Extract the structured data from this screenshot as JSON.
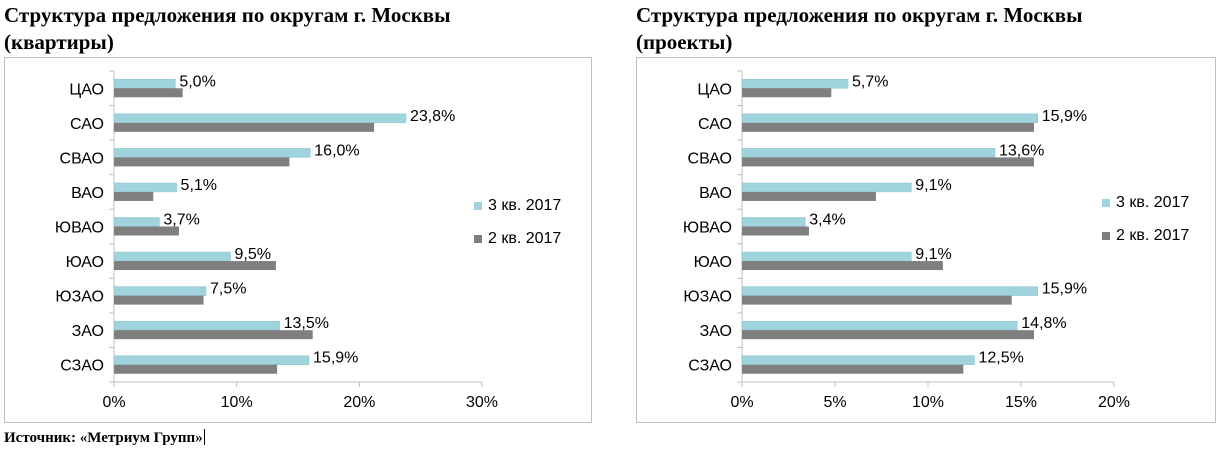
{
  "colors": {
    "q3": "#9fd4dc",
    "q2": "#7f7f7f",
    "axis": "#bfbfbf",
    "text": "#000000"
  },
  "source": "Источник: «Метриум Групп»",
  "chart_data": [
    {
      "type": "bar",
      "orientation": "horizontal",
      "title": "Структура предложения по округам г. Москвы (квартиры)",
      "title_lines": [
        "Структура предложения по округам г. Москвы",
        "(квартиры)"
      ],
      "categories": [
        "ЦАО",
        "САО",
        "СВАО",
        "ВАО",
        "ЮВАО",
        "ЮАО",
        "ЮЗАО",
        "ЗАО",
        "СЗАО"
      ],
      "series": [
        {
          "name": "3 кв. 2017",
          "values": [
            5.0,
            23.8,
            16.0,
            5.1,
            3.7,
            9.5,
            7.5,
            13.5,
            15.9
          ],
          "labels": [
            "5,0%",
            "23,8%",
            "16,0%",
            "5,1%",
            "3,7%",
            "9,5%",
            "7,5%",
            "13,5%",
            "15,9%"
          ]
        },
        {
          "name": "2 кв. 2017",
          "values": [
            5.6,
            21.2,
            14.3,
            3.2,
            5.3,
            13.2,
            7.3,
            16.2,
            13.3
          ]
        }
      ],
      "xlim": [
        0,
        30
      ],
      "xticks": [
        "0%",
        "10%",
        "20%",
        "30%"
      ],
      "grid": false,
      "legend_position": "right"
    },
    {
      "type": "bar",
      "orientation": "horizontal",
      "title": "Структура предложения по округам г. Москвы (проекты)",
      "title_lines": [
        "Структура предложения по округам г. Москвы",
        "(проекты)"
      ],
      "categories": [
        "ЦАО",
        "САО",
        "СВАО",
        "ВАО",
        "ЮВАО",
        "ЮАО",
        "ЮЗАО",
        "ЗАО",
        "СЗАО"
      ],
      "series": [
        {
          "name": "3 кв. 2017",
          "values": [
            5.7,
            15.9,
            13.6,
            9.1,
            3.4,
            9.1,
            15.9,
            14.8,
            12.5
          ],
          "labels": [
            "5,7%",
            "15,9%",
            "13,6%",
            "9,1%",
            "3,4%",
            "9,1%",
            "15,9%",
            "14,8%",
            "12,5%"
          ]
        },
        {
          "name": "2 кв. 2017",
          "values": [
            4.8,
            15.7,
            15.7,
            7.2,
            3.6,
            10.8,
            14.5,
            15.7,
            11.9
          ]
        }
      ],
      "xlim": [
        0,
        20
      ],
      "xticks": [
        "0%",
        "5%",
        "10%",
        "15%",
        "20%"
      ],
      "grid": false,
      "legend_position": "right"
    }
  ]
}
